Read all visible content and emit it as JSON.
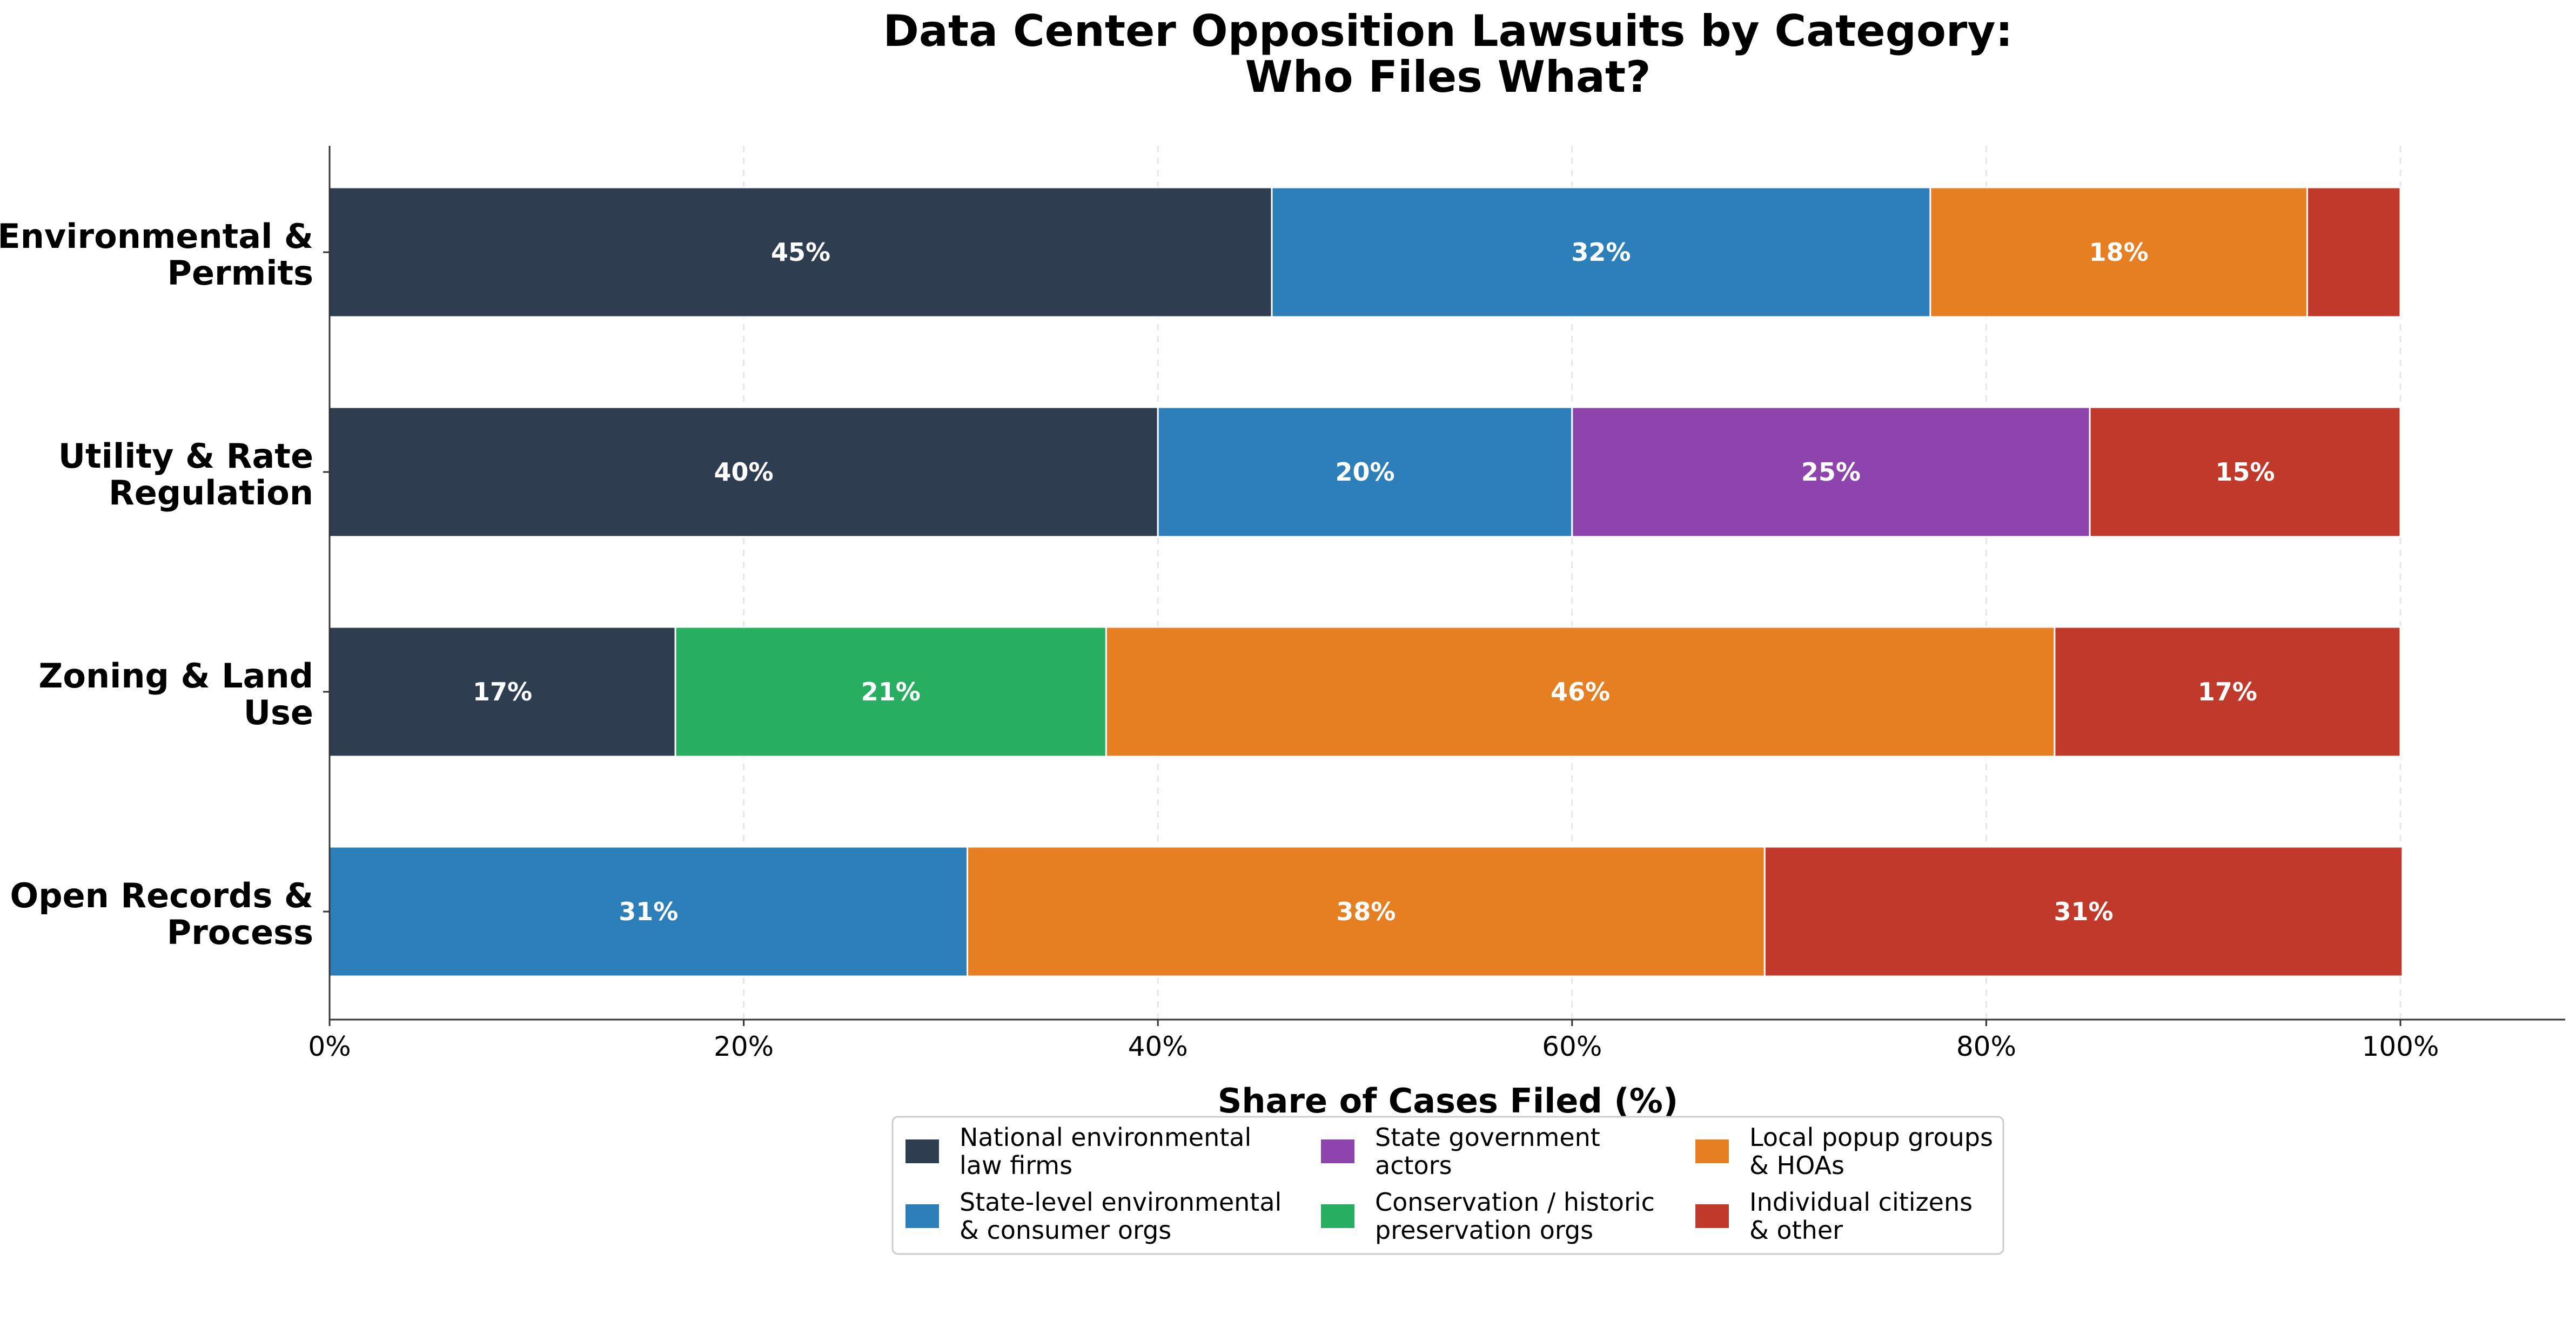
{
  "chart_data": {
    "type": "bar",
    "orientation": "horizontal",
    "stacked": true,
    "title_lines": [
      "Data Center Opposition Lawsuits by Category:",
      "Who Files What?"
    ],
    "xlabel": "Share of Cases Filed (%)",
    "ylabel": "",
    "xlim": [
      0,
      100
    ],
    "xticks": [
      0,
      20,
      40,
      60,
      80,
      100
    ],
    "xtick_labels": [
      "0%",
      "20%",
      "40%",
      "60%",
      "80%",
      "100%"
    ],
    "grid": "vertical dashed",
    "legend_position": "bottom-center",
    "categories": [
      [
        "Environmental &",
        "Permits"
      ],
      [
        "Utility & Rate",
        "Regulation"
      ],
      [
        "Zoning & Land",
        "Use"
      ],
      [
        "Open Records &",
        "Process"
      ]
    ],
    "series": [
      {
        "name_lines": [
          "National environmental",
          "law firms"
        ],
        "color": "#2e3e50",
        "values": [
          45.5,
          40,
          16.7,
          0
        ],
        "labels": [
          "45%",
          "40%",
          "17%",
          ""
        ]
      },
      {
        "name_lines": [
          "State-level environmental",
          "& consumer orgs"
        ],
        "color": "#2c7fb8",
        "values": [
          31.8,
          20,
          0,
          30.8
        ],
        "labels": [
          "32%",
          "20%",
          "",
          "31%"
        ]
      },
      {
        "name_lines": [
          "State government",
          "actors"
        ],
        "color": "#8e44ad",
        "values": [
          0,
          25,
          0,
          0
        ],
        "labels": [
          "",
          "25%",
          "",
          ""
        ]
      },
      {
        "name_lines": [
          "Conservation / historic",
          "preservation orgs"
        ],
        "color": "#27ae60",
        "values": [
          0,
          0,
          20.8,
          0
        ],
        "labels": [
          "",
          "",
          "21%",
          ""
        ]
      },
      {
        "name_lines": [
          "Local popup groups",
          "& HOAs"
        ],
        "color": "#e67e22",
        "values": [
          18.2,
          0,
          45.8,
          38.5
        ],
        "labels": [
          "18%",
          "",
          "46%",
          "38%"
        ]
      },
      {
        "name_lines": [
          "Individual citizens",
          "& other"
        ],
        "color": "#c0392b",
        "values": [
          4.5,
          15,
          16.7,
          30.8
        ],
        "labels": [
          "",
          "15%",
          "17%",
          "31%"
        ]
      }
    ]
  }
}
